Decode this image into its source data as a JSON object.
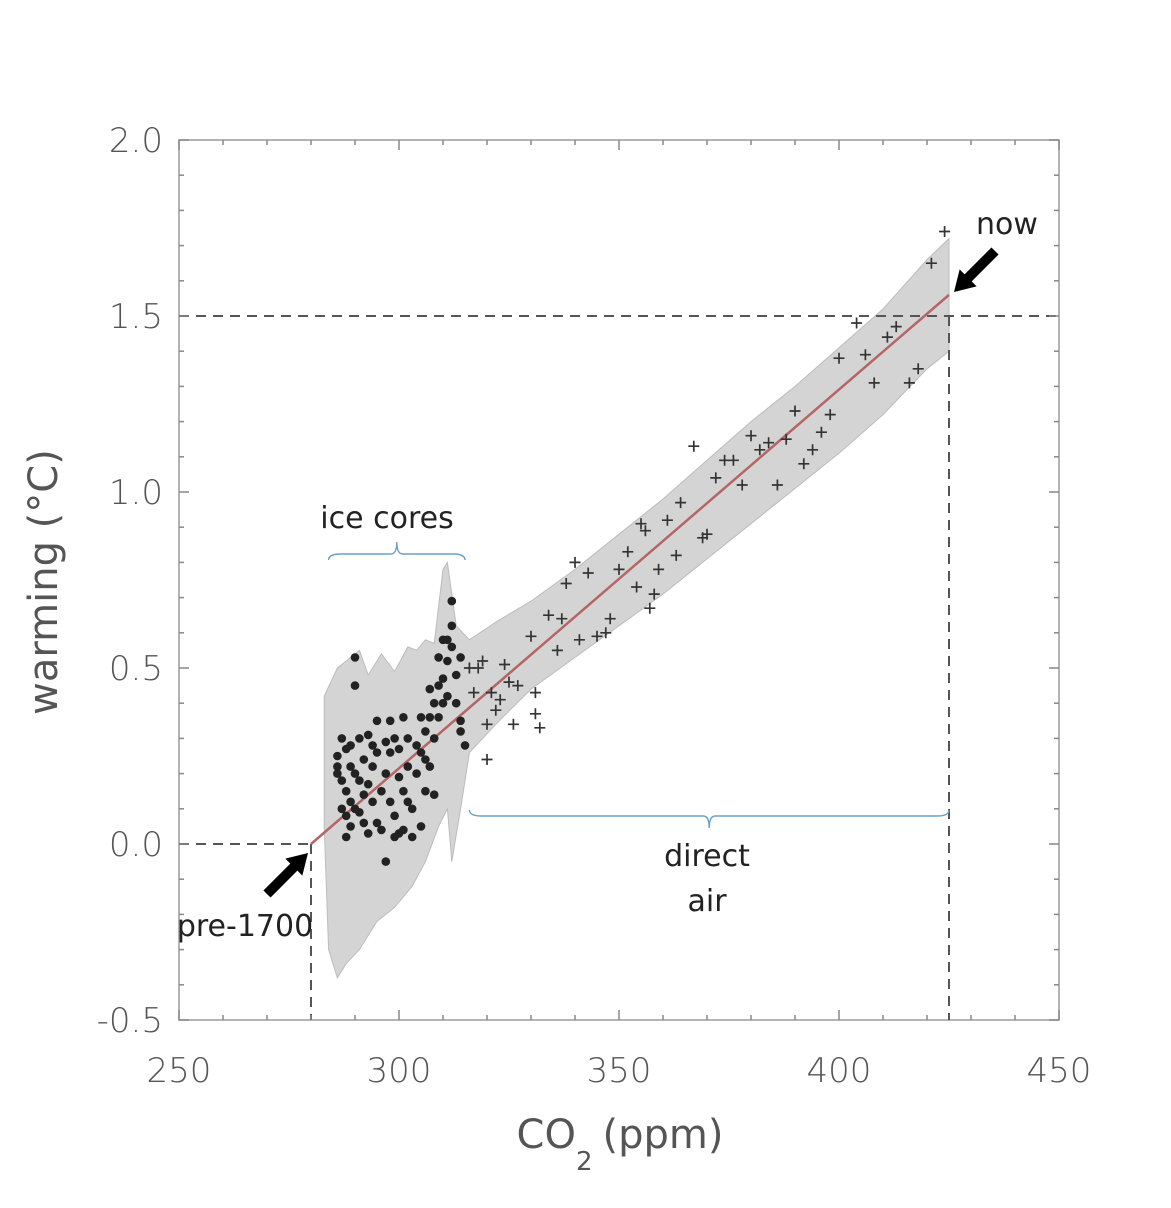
{
  "chart_data": {
    "type": "scatter",
    "title": "",
    "xlabel": "CO",
    "xlabel_sub": "2",
    "xlabel_unit": "(ppm)",
    "ylabel": "warming (°C)",
    "xlim": [
      250,
      450
    ],
    "ylim": [
      -0.5,
      2.0
    ],
    "xticks": [
      250,
      300,
      350,
      400,
      450
    ],
    "xtick_labels": [
      "250",
      "300",
      "350",
      "400",
      "450"
    ],
    "yticks": [
      -0.5,
      0.0,
      0.5,
      1.0,
      1.5,
      2.0
    ],
    "ytick_labels": [
      "-0.5",
      "0.0",
      "0.5",
      "1.0",
      "1.5",
      "2.0"
    ],
    "grid": false,
    "colors": {
      "fit_line": "#b56565",
      "band": "#d4d4d4",
      "band_edge": "#bcbcbc",
      "ice_points": "#222222",
      "air_points": "#333333",
      "brace": "#6a9fc8",
      "reference": "#555555",
      "arrow": "#000000"
    },
    "fit_line": {
      "x": [
        280,
        425
      ],
      "y": [
        0.0,
        1.56
      ]
    },
    "reference_levels": {
      "pre_industrial": {
        "x": 280,
        "y": 0.0
      },
      "now": {
        "x": 425,
        "y": 1.5
      }
    },
    "band": {
      "upper": [
        [
          283,
          0.42
        ],
        [
          286,
          0.5
        ],
        [
          288,
          0.52
        ],
        [
          291,
          0.55
        ],
        [
          293,
          0.48
        ],
        [
          296,
          0.54
        ],
        [
          299,
          0.49
        ],
        [
          302,
          0.56
        ],
        [
          304,
          0.55
        ],
        [
          306,
          0.58
        ],
        [
          308,
          0.57
        ],
        [
          310,
          0.78
        ],
        [
          311,
          0.8
        ],
        [
          313,
          0.62
        ],
        [
          316,
          0.58
        ],
        [
          322,
          0.63
        ],
        [
          330,
          0.69
        ],
        [
          340,
          0.78
        ],
        [
          350,
          0.88
        ],
        [
          360,
          0.98
        ],
        [
          370,
          1.09
        ],
        [
          380,
          1.2
        ],
        [
          390,
          1.3
        ],
        [
          400,
          1.41
        ],
        [
          410,
          1.52
        ],
        [
          420,
          1.66
        ],
        [
          425,
          1.72
        ]
      ],
      "lower": [
        [
          425,
          1.4
        ],
        [
          420,
          1.35
        ],
        [
          410,
          1.22
        ],
        [
          400,
          1.11
        ],
        [
          390,
          1.01
        ],
        [
          380,
          0.91
        ],
        [
          370,
          0.81
        ],
        [
          360,
          0.71
        ],
        [
          350,
          0.62
        ],
        [
          340,
          0.53
        ],
        [
          330,
          0.44
        ],
        [
          322,
          0.34
        ],
        [
          316,
          0.26
        ],
        [
          314,
          0.1
        ],
        [
          312,
          -0.05
        ],
        [
          311,
          0.1
        ],
        [
          309,
          0.05
        ],
        [
          306,
          -0.05
        ],
        [
          303,
          -0.12
        ],
        [
          299,
          -0.18
        ],
        [
          295,
          -0.22
        ],
        [
          291,
          -0.3
        ],
        [
          288,
          -0.34
        ],
        [
          286,
          -0.38
        ],
        [
          284,
          -0.3
        ],
        [
          283,
          0.05
        ]
      ]
    },
    "series": [
      {
        "name": "ice cores",
        "marker": "dot",
        "points": [
          [
            286,
            0.25
          ],
          [
            286,
            0.22
          ],
          [
            286,
            0.2
          ],
          [
            287,
            0.3
          ],
          [
            287,
            0.18
          ],
          [
            287,
            0.1
          ],
          [
            288,
            0.27
          ],
          [
            288,
            0.15
          ],
          [
            288,
            0.08
          ],
          [
            288,
            0.02
          ],
          [
            289,
            0.28
          ],
          [
            289,
            0.22
          ],
          [
            289,
            0.12
          ],
          [
            289,
            0.05
          ],
          [
            290,
            0.53
          ],
          [
            290,
            0.45
          ],
          [
            290,
            0.2
          ],
          [
            290,
            0.1
          ],
          [
            291,
            0.3
          ],
          [
            291,
            0.18
          ],
          [
            291,
            0.09
          ],
          [
            292,
            0.24
          ],
          [
            292,
            0.14
          ],
          [
            292,
            0.06
          ],
          [
            293,
            0.31
          ],
          [
            293,
            0.17
          ],
          [
            293,
            0.03
          ],
          [
            294,
            0.28
          ],
          [
            294,
            0.22
          ],
          [
            294,
            0.12
          ],
          [
            295,
            0.35
          ],
          [
            295,
            0.26
          ],
          [
            295,
            0.06
          ],
          [
            296,
            0.15
          ],
          [
            296,
            0.04
          ],
          [
            297,
            0.29
          ],
          [
            297,
            0.2
          ],
          [
            297,
            -0.05
          ],
          [
            298,
            0.35
          ],
          [
            298,
            0.26
          ],
          [
            298,
            0.12
          ],
          [
            299,
            0.3
          ],
          [
            299,
            0.08
          ],
          [
            299,
            0.02
          ],
          [
            300,
            0.27
          ],
          [
            300,
            0.19
          ],
          [
            300,
            0.03
          ],
          [
            301,
            0.36
          ],
          [
            301,
            0.15
          ],
          [
            301,
            0.04
          ],
          [
            302,
            0.3
          ],
          [
            302,
            0.22
          ],
          [
            302,
            0.12
          ],
          [
            303,
            0.1
          ],
          [
            303,
            0.02
          ],
          [
            304,
            0.28
          ],
          [
            304,
            0.2
          ],
          [
            305,
            0.36
          ],
          [
            305,
            0.26
          ],
          [
            305,
            0.05
          ],
          [
            306,
            0.32
          ],
          [
            306,
            0.24
          ],
          [
            306,
            0.15
          ],
          [
            307,
            0.44
          ],
          [
            307,
            0.36
          ],
          [
            307,
            0.22
          ],
          [
            308,
            0.4
          ],
          [
            308,
            0.3
          ],
          [
            308,
            0.14
          ],
          [
            309,
            0.53
          ],
          [
            309,
            0.45
          ],
          [
            309,
            0.36
          ],
          [
            310,
            0.58
          ],
          [
            310,
            0.47
          ],
          [
            310,
            0.4
          ],
          [
            311,
            0.58
          ],
          [
            311,
            0.52
          ],
          [
            311,
            0.42
          ],
          [
            312,
            0.69
          ],
          [
            312,
            0.62
          ],
          [
            312,
            0.56
          ],
          [
            313,
            0.48
          ],
          [
            313,
            0.4
          ],
          [
            314,
            0.53
          ],
          [
            314,
            0.35
          ],
          [
            314,
            0.32
          ],
          [
            315,
            0.28
          ]
        ]
      },
      {
        "name": "direct air",
        "marker": "plus",
        "points": [
          [
            316,
            0.5
          ],
          [
            317,
            0.43
          ],
          [
            318,
            0.5
          ],
          [
            319,
            0.52
          ],
          [
            320,
            0.34
          ],
          [
            320,
            0.24
          ],
          [
            321,
            0.43
          ],
          [
            322,
            0.38
          ],
          [
            323,
            0.41
          ],
          [
            324,
            0.51
          ],
          [
            325,
            0.46
          ],
          [
            326,
            0.34
          ],
          [
            327,
            0.45
          ],
          [
            330,
            0.59
          ],
          [
            331,
            0.37
          ],
          [
            331,
            0.43
          ],
          [
            332,
            0.33
          ],
          [
            334,
            0.65
          ],
          [
            336,
            0.55
          ],
          [
            337,
            0.64
          ],
          [
            338,
            0.74
          ],
          [
            340,
            0.8
          ],
          [
            341,
            0.58
          ],
          [
            343,
            0.77
          ],
          [
            345,
            0.59
          ],
          [
            347,
            0.6
          ],
          [
            348,
            0.64
          ],
          [
            350,
            0.78
          ],
          [
            352,
            0.83
          ],
          [
            354,
            0.73
          ],
          [
            355,
            0.91
          ],
          [
            356,
            0.89
          ],
          [
            357,
            0.67
          ],
          [
            358,
            0.71
          ],
          [
            359,
            0.78
          ],
          [
            361,
            0.92
          ],
          [
            363,
            0.82
          ],
          [
            364,
            0.97
          ],
          [
            367,
            1.13
          ],
          [
            369,
            0.87
          ],
          [
            370,
            0.88
          ],
          [
            372,
            1.04
          ],
          [
            374,
            1.09
          ],
          [
            376,
            1.09
          ],
          [
            378,
            1.02
          ],
          [
            380,
            1.16
          ],
          [
            382,
            1.12
          ],
          [
            384,
            1.14
          ],
          [
            386,
            1.02
          ],
          [
            388,
            1.15
          ],
          [
            390,
            1.23
          ],
          [
            392,
            1.08
          ],
          [
            394,
            1.12
          ],
          [
            396,
            1.17
          ],
          [
            398,
            1.22
          ],
          [
            400,
            1.38
          ],
          [
            404,
            1.48
          ],
          [
            406,
            1.39
          ],
          [
            408,
            1.31
          ],
          [
            411,
            1.44
          ],
          [
            413,
            1.47
          ],
          [
            416,
            1.31
          ],
          [
            418,
            1.35
          ],
          [
            421,
            1.65
          ],
          [
            424,
            1.74
          ]
        ]
      }
    ],
    "annotations": {
      "ice_cores_label": "ice cores",
      "direct_air_label_1": "direct",
      "direct_air_label_2": "air",
      "pre_industrial_label": "pre-1700",
      "now_label": "now"
    }
  }
}
